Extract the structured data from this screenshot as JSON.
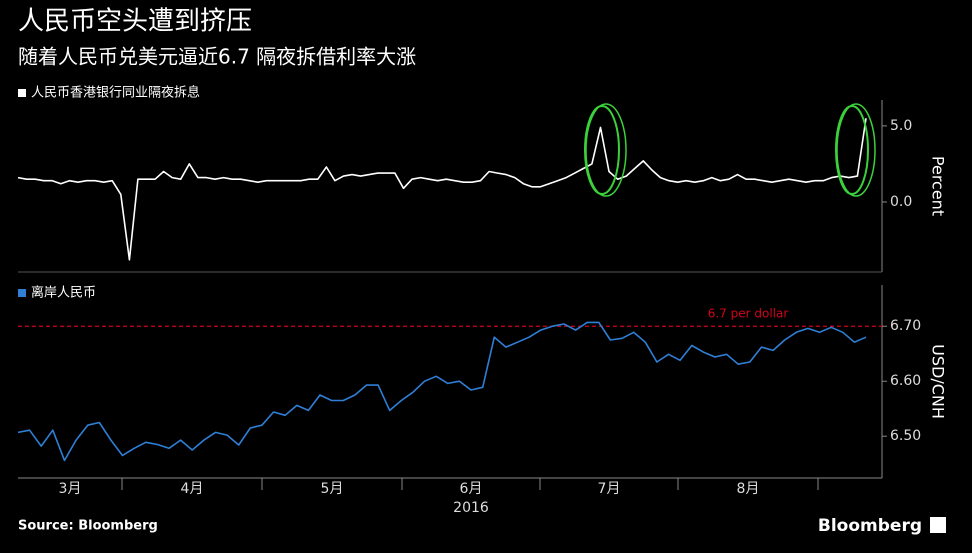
{
  "title": "人民币空头遭到挤压",
  "subtitle": "随着人民币兑美元逼近6.7 隔夜拆借利率大涨",
  "source": "Source: Bloomberg",
  "brand": "Bloomberg",
  "x_axis": {
    "months": [
      "3月",
      "4月",
      "5月",
      "6月",
      "7月",
      "8月"
    ],
    "year": "2016"
  },
  "chart_data": [
    {
      "type": "line",
      "ylabel": "Percent",
      "ylim": [
        -4.6,
        6.7
      ],
      "yticks": [
        {
          "value": 5,
          "label": "5.0"
        },
        {
          "value": 0,
          "label": "0.0"
        }
      ],
      "series": [
        {
          "name": "人民币香港银行同业隔夜拆息",
          "color": "#ffffff",
          "values": [
            1.6,
            1.5,
            1.5,
            1.4,
            1.4,
            1.2,
            1.4,
            1.3,
            1.4,
            1.4,
            1.3,
            1.4,
            0.5,
            -3.8,
            1.5,
            1.5,
            1.5,
            2.0,
            1.6,
            1.5,
            2.5,
            1.6,
            1.6,
            1.5,
            1.6,
            1.5,
            1.5,
            1.4,
            1.3,
            1.4,
            1.4,
            1.4,
            1.4,
            1.4,
            1.5,
            1.5,
            2.3,
            1.4,
            1.7,
            1.8,
            1.7,
            1.8,
            1.9,
            1.9,
            1.9,
            0.9,
            1.5,
            1.6,
            1.5,
            1.4,
            1.5,
            1.4,
            1.3,
            1.3,
            1.4,
            2.0,
            1.9,
            1.8,
            1.6,
            1.2,
            1.0,
            1.0,
            1.2,
            1.4,
            1.6,
            1.9,
            2.2,
            2.5,
            4.9,
            2.0,
            1.5,
            1.7,
            2.2,
            2.7,
            2.1,
            1.6,
            1.4,
            1.3,
            1.4,
            1.3,
            1.4,
            1.6,
            1.4,
            1.5,
            1.8,
            1.5,
            1.5,
            1.4,
            1.3,
            1.4,
            1.5,
            1.4,
            1.3,
            1.4,
            1.4,
            1.6,
            1.7,
            1.6,
            1.7,
            5.5
          ]
        }
      ]
    },
    {
      "type": "line",
      "ylabel": "USD/CNH",
      "ylim": [
        6.424,
        6.775
      ],
      "yticks": [
        {
          "value": 6.7,
          "label": "6.70"
        },
        {
          "value": 6.6,
          "label": "6.60"
        },
        {
          "value": 6.5,
          "label": "6.50"
        }
      ],
      "reference": {
        "value": 6.7,
        "label": "6.7 per dollar",
        "color": "#d0021b"
      },
      "series": [
        {
          "name": "离岸人民币",
          "color": "#2f7fd6",
          "values": [
            6.507,
            6.511,
            6.482,
            6.511,
            6.456,
            6.493,
            6.52,
            6.525,
            6.493,
            6.465,
            6.478,
            6.489,
            6.485,
            6.478,
            6.493,
            6.475,
            6.493,
            6.507,
            6.502,
            6.484,
            6.515,
            6.52,
            6.544,
            6.538,
            6.556,
            6.547,
            6.575,
            6.565,
            6.565,
            6.575,
            6.593,
            6.593,
            6.547,
            6.565,
            6.58,
            6.6,
            6.609,
            6.596,
            6.6,
            6.584,
            6.589,
            6.68,
            6.662,
            6.671,
            6.68,
            6.693,
            6.7,
            6.704,
            6.693,
            6.707,
            6.707,
            6.675,
            6.678,
            6.689,
            6.671,
            6.635,
            6.649,
            6.638,
            6.665,
            6.653,
            6.644,
            6.649,
            6.631,
            6.635,
            6.662,
            6.656,
            6.675,
            6.689,
            6.696,
            6.689,
            6.698,
            6.689,
            6.671,
            6.68
          ]
        }
      ]
    }
  ]
}
